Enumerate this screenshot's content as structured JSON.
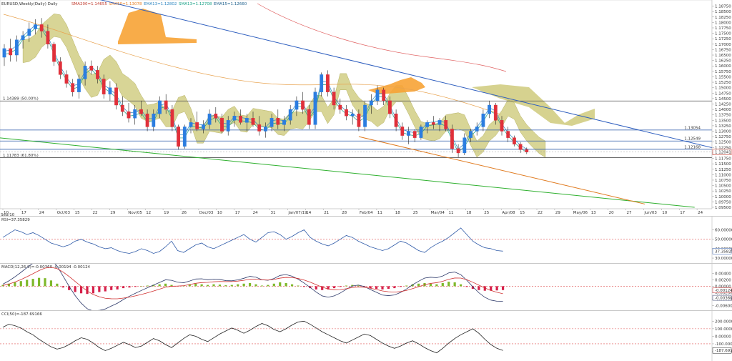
{
  "header": {
    "symbol": "EURUSD,Weekly(Daily) Daily",
    "indicators": [
      {
        "text": "SMA200=1.14655",
        "color": "#c0392b"
      },
      {
        "text": "SMA50=1.13078",
        "color": "#e67e22"
      },
      {
        "text": "EMA13=1.12802",
        "color": "#2e86c1"
      },
      {
        "text": "SMA13=1.12708",
        "color": "#16a085"
      },
      {
        "text": "EMA15=1.12660",
        "color": "#1f618d"
      }
    ]
  },
  "chart_data": [
    {
      "type": "candlestick",
      "title": "",
      "y_axis_ticks": [
        "1.18750",
        "1.18500",
        "1.18250",
        "1.18000",
        "1.17750",
        "1.17500",
        "1.17250",
        "1.17000",
        "1.16750",
        "1.16500",
        "1.16250",
        "1.16000",
        "1.15750",
        "1.15500",
        "1.15250",
        "1.15000",
        "1.14750",
        "1.14500",
        "1.14250",
        "1.14000",
        "1.13750",
        "1.13500",
        "1.13250",
        "1.13000",
        "1.12750",
        "1.12500",
        "1.12250",
        "1.12000",
        "1.11750",
        "1.11500",
        "1.11250",
        "1.11000",
        "1.10750",
        "1.10500",
        "1.10250",
        "1.10000",
        "1.09750",
        "1.09500"
      ],
      "ylim": [
        1.095,
        1.189
      ],
      "x_tick_labels": [
        "10",
        "17",
        "24",
        "Oct/03",
        "15",
        "22",
        "29",
        "Nov/05",
        "12",
        "19",
        "26",
        "Dec/03",
        "10",
        "17",
        "24",
        "31",
        "Jan/07/19",
        "14",
        "21",
        "28",
        "Feb/04",
        "11",
        "18",
        "25",
        "Mar/04",
        "11",
        "18",
        "25",
        "Apr/08",
        "15",
        "22",
        "29",
        "May/06",
        "13",
        "20",
        "27",
        "Jun/03",
        "10",
        "17",
        "24"
      ],
      "x_label_prefix": "Sep/10",
      "horizontal_levels": [
        {
          "value": 1.14389,
          "label": "1.14389 (50.00%)",
          "color": "#555555"
        },
        {
          "value": 1.13054,
          "label": "1.13054",
          "color": "#2e5aa8"
        },
        {
          "value": 1.12549,
          "label": "1.12549",
          "color": "#2e5aa8"
        },
        {
          "value": 1.12168,
          "label": "1.12168",
          "color": "#2e5aa8"
        },
        {
          "value": 1.11783,
          "label": "1.11783 (61.80%)",
          "color": "#555555"
        }
      ],
      "current_price": "1.12041",
      "trendlines": [
        {
          "name": "",
          "color": "#2f5fbf",
          "from": {
            "x": 12,
            "y": 1.1935
          },
          "to": {
            "x": 118,
            "y": 1.1202
          }
        },
        {
          "name": "",
          "color": "#2fb02f",
          "from": {
            "x": 0,
            "y": 1.127
          },
          "to": {
            "x": 112,
            "y": 1.095
          }
        },
        {
          "name": "",
          "color": "#e07b20",
          "from": {
            "x": 58,
            "y": 1.1275
          },
          "to": {
            "x": 104,
            "y": 1.0965
          }
        }
      ],
      "candles": [
        {
          "t": 1,
          "o": 1.164,
          "h": 1.17,
          "l": 1.16,
          "c": 1.168
        },
        {
          "t": 2,
          "o": 1.168,
          "h": 1.1725,
          "l": 1.162,
          "c": 1.165
        },
        {
          "t": 3,
          "o": 1.165,
          "h": 1.174,
          "l": 1.162,
          "c": 1.172
        },
        {
          "t": 4,
          "o": 1.172,
          "h": 1.176,
          "l": 1.168,
          "c": 1.174
        },
        {
          "t": 5,
          "o": 1.174,
          "h": 1.18,
          "l": 1.171,
          "c": 1.177
        },
        {
          "t": 6,
          "o": 1.177,
          "h": 1.1815,
          "l": 1.1745,
          "c": 1.179
        },
        {
          "t": 7,
          "o": 1.179,
          "h": 1.182,
          "l": 1.173,
          "c": 1.176
        },
        {
          "t": 8,
          "o": 1.176,
          "h": 1.179,
          "l": 1.168,
          "c": 1.17
        },
        {
          "t": 9,
          "o": 1.17,
          "h": 1.171,
          "l": 1.16,
          "c": 1.162
        },
        {
          "t": 10,
          "o": 1.162,
          "h": 1.164,
          "l": 1.154,
          "c": 1.156
        },
        {
          "t": 11,
          "o": 1.156,
          "h": 1.158,
          "l": 1.15,
          "c": 1.152
        },
        {
          "t": 12,
          "o": 1.152,
          "h": 1.154,
          "l": 1.146,
          "c": 1.148
        },
        {
          "t": 13,
          "o": 1.148,
          "h": 1.156,
          "l": 1.145,
          "c": 1.154
        },
        {
          "t": 14,
          "o": 1.154,
          "h": 1.162,
          "l": 1.151,
          "c": 1.16
        },
        {
          "t": 15,
          "o": 1.16,
          "h": 1.1625,
          "l": 1.156,
          "c": 1.158
        },
        {
          "t": 16,
          "o": 1.158,
          "h": 1.16,
          "l": 1.152,
          "c": 1.154
        },
        {
          "t": 17,
          "o": 1.154,
          "h": 1.156,
          "l": 1.145,
          "c": 1.147
        },
        {
          "t": 18,
          "o": 1.147,
          "h": 1.153,
          "l": 1.144,
          "c": 1.15
        },
        {
          "t": 19,
          "o": 1.15,
          "h": 1.152,
          "l": 1.14,
          "c": 1.142
        },
        {
          "t": 20,
          "o": 1.142,
          "h": 1.146,
          "l": 1.137,
          "c": 1.139
        },
        {
          "t": 21,
          "o": 1.139,
          "h": 1.143,
          "l": 1.134,
          "c": 1.136
        },
        {
          "t": 22,
          "o": 1.136,
          "h": 1.142,
          "l": 1.133,
          "c": 1.14
        },
        {
          "t": 23,
          "o": 1.14,
          "h": 1.144,
          "l": 1.137,
          "c": 1.138
        },
        {
          "t": 24,
          "o": 1.138,
          "h": 1.14,
          "l": 1.13,
          "c": 1.132
        },
        {
          "t": 25,
          "o": 1.132,
          "h": 1.14,
          "l": 1.13,
          "c": 1.138
        },
        {
          "t": 26,
          "o": 1.138,
          "h": 1.146,
          "l": 1.136,
          "c": 1.144
        },
        {
          "t": 27,
          "o": 1.144,
          "h": 1.147,
          "l": 1.138,
          "c": 1.14
        },
        {
          "t": 28,
          "o": 1.14,
          "h": 1.142,
          "l": 1.13,
          "c": 1.132
        },
        {
          "t": 29,
          "o": 1.132,
          "h": 1.133,
          "l": 1.1215,
          "c": 1.123
        },
        {
          "t": 30,
          "o": 1.123,
          "h": 1.133,
          "l": 1.122,
          "c": 1.132
        },
        {
          "t": 31,
          "o": 1.132,
          "h": 1.136,
          "l": 1.129,
          "c": 1.134
        },
        {
          "t": 32,
          "o": 1.134,
          "h": 1.139,
          "l": 1.13,
          "c": 1.131
        },
        {
          "t": 33,
          "o": 1.131,
          "h": 1.135,
          "l": 1.129,
          "c": 1.133
        },
        {
          "t": 34,
          "o": 1.133,
          "h": 1.14,
          "l": 1.131,
          "c": 1.138
        },
        {
          "t": 35,
          "o": 1.138,
          "h": 1.141,
          "l": 1.134,
          "c": 1.136
        },
        {
          "t": 36,
          "o": 1.136,
          "h": 1.138,
          "l": 1.129,
          "c": 1.13
        },
        {
          "t": 37,
          "o": 1.13,
          "h": 1.137,
          "l": 1.128,
          "c": 1.135
        },
        {
          "t": 38,
          "o": 1.135,
          "h": 1.139,
          "l": 1.132,
          "c": 1.137
        },
        {
          "t": 39,
          "o": 1.137,
          "h": 1.14,
          "l": 1.133,
          "c": 1.134
        },
        {
          "t": 40,
          "o": 1.134,
          "h": 1.138,
          "l": 1.13,
          "c": 1.136
        },
        {
          "t": 41,
          "o": 1.136,
          "h": 1.139,
          "l": 1.132,
          "c": 1.133
        },
        {
          "t": 42,
          "o": 1.133,
          "h": 1.137,
          "l": 1.128,
          "c": 1.13
        },
        {
          "t": 43,
          "o": 1.13,
          "h": 1.134,
          "l": 1.127,
          "c": 1.132
        },
        {
          "t": 44,
          "o": 1.132,
          "h": 1.138,
          "l": 1.13,
          "c": 1.136
        },
        {
          "t": 45,
          "o": 1.136,
          "h": 1.14,
          "l": 1.131,
          "c": 1.133
        },
        {
          "t": 46,
          "o": 1.133,
          "h": 1.137,
          "l": 1.13,
          "c": 1.135
        },
        {
          "t": 47,
          "o": 1.135,
          "h": 1.142,
          "l": 1.133,
          "c": 1.14
        },
        {
          "t": 48,
          "o": 1.14,
          "h": 1.146,
          "l": 1.137,
          "c": 1.144
        },
        {
          "t": 49,
          "o": 1.144,
          "h": 1.148,
          "l": 1.138,
          "c": 1.14
        },
        {
          "t": 50,
          "o": 1.14,
          "h": 1.142,
          "l": 1.131,
          "c": 1.133
        },
        {
          "t": 51,
          "o": 1.133,
          "h": 1.15,
          "l": 1.131,
          "c": 1.148
        },
        {
          "t": 52,
          "o": 1.148,
          "h": 1.157,
          "l": 1.146,
          "c": 1.156
        },
        {
          "t": 53,
          "o": 1.156,
          "h": 1.158,
          "l": 1.146,
          "c": 1.148
        },
        {
          "t": 54,
          "o": 1.148,
          "h": 1.15,
          "l": 1.14,
          "c": 1.142
        },
        {
          "t": 55,
          "o": 1.142,
          "h": 1.145,
          "l": 1.138,
          "c": 1.14
        },
        {
          "t": 56,
          "o": 1.14,
          "h": 1.142,
          "l": 1.135,
          "c": 1.137
        },
        {
          "t": 57,
          "o": 1.137,
          "h": 1.14,
          "l": 1.133,
          "c": 1.138
        },
        {
          "t": 58,
          "o": 1.138,
          "h": 1.14,
          "l": 1.13,
          "c": 1.132
        },
        {
          "t": 59,
          "o": 1.132,
          "h": 1.144,
          "l": 1.13,
          "c": 1.142
        },
        {
          "t": 60,
          "o": 1.142,
          "h": 1.147,
          "l": 1.138,
          "c": 1.144
        },
        {
          "t": 61,
          "o": 1.144,
          "h": 1.151,
          "l": 1.142,
          "c": 1.149
        },
        {
          "t": 62,
          "o": 1.149,
          "h": 1.15,
          "l": 1.142,
          "c": 1.144
        },
        {
          "t": 63,
          "o": 1.144,
          "h": 1.146,
          "l": 1.136,
          "c": 1.138
        },
        {
          "t": 64,
          "o": 1.138,
          "h": 1.14,
          "l": 1.13,
          "c": 1.132
        },
        {
          "t": 65,
          "o": 1.132,
          "h": 1.134,
          "l": 1.126,
          "c": 1.128
        },
        {
          "t": 66,
          "o": 1.128,
          "h": 1.132,
          "l": 1.124,
          "c": 1.13
        },
        {
          "t": 67,
          "o": 1.13,
          "h": 1.131,
          "l": 1.125,
          "c": 1.127
        },
        {
          "t": 68,
          "o": 1.127,
          "h": 1.133,
          "l": 1.126,
          "c": 1.132
        },
        {
          "t": 69,
          "o": 1.132,
          "h": 1.135,
          "l": 1.129,
          "c": 1.134
        },
        {
          "t": 70,
          "o": 1.134,
          "h": 1.137,
          "l": 1.131,
          "c": 1.133
        },
        {
          "t": 71,
          "o": 1.133,
          "h": 1.136,
          "l": 1.13,
          "c": 1.135
        },
        {
          "t": 72,
          "o": 1.135,
          "h": 1.137,
          "l": 1.13,
          "c": 1.131
        },
        {
          "t": 73,
          "o": 1.131,
          "h": 1.133,
          "l": 1.12,
          "c": 1.122
        },
        {
          "t": 74,
          "o": 1.122,
          "h": 1.124,
          "l": 1.118,
          "c": 1.12
        },
        {
          "t": 75,
          "o": 1.12,
          "h": 1.129,
          "l": 1.119,
          "c": 1.127
        },
        {
          "t": 76,
          "o": 1.127,
          "h": 1.131,
          "l": 1.125,
          "c": 1.13
        },
        {
          "t": 77,
          "o": 1.13,
          "h": 1.134,
          "l": 1.128,
          "c": 1.132
        },
        {
          "t": 78,
          "o": 1.132,
          "h": 1.14,
          "l": 1.13,
          "c": 1.138
        },
        {
          "t": 79,
          "o": 1.138,
          "h": 1.144,
          "l": 1.136,
          "c": 1.142
        },
        {
          "t": 80,
          "o": 1.142,
          "h": 1.143,
          "l": 1.133,
          "c": 1.135
        },
        {
          "t": 81,
          "o": 1.135,
          "h": 1.137,
          "l": 1.128,
          "c": 1.13
        },
        {
          "t": 82,
          "o": 1.13,
          "h": 1.132,
          "l": 1.125,
          "c": 1.127
        },
        {
          "t": 83,
          "o": 1.127,
          "h": 1.128,
          "l": 1.123,
          "c": 1.124
        },
        {
          "t": 84,
          "o": 1.124,
          "h": 1.125,
          "l": 1.12,
          "c": 1.1215
        },
        {
          "t": 85,
          "o": 1.1215,
          "h": 1.1225,
          "l": 1.1195,
          "c": 1.1204
        }
      ]
    },
    {
      "type": "line",
      "title": "RSI=37.35829",
      "y_axis_ticks": [
        "60.00000",
        "50.00000",
        "40.00000",
        "30.00000"
      ],
      "ylim": [
        27,
        68
      ],
      "reference_line": 50,
      "current_value": "37.35829",
      "values": [
        52,
        56,
        60,
        58,
        55,
        57,
        54,
        50,
        46,
        44,
        42,
        44,
        48,
        50,
        47,
        45,
        42,
        40,
        41,
        38,
        36,
        35,
        37,
        40,
        38,
        35,
        37,
        42,
        48,
        38,
        36,
        40,
        44,
        46,
        42,
        40,
        43,
        46,
        49,
        52,
        55,
        50,
        47,
        52,
        57,
        58,
        55,
        50,
        53,
        57,
        60,
        52,
        48,
        45,
        43,
        46,
        50,
        54,
        52,
        48,
        45,
        42,
        40,
        38,
        40,
        44,
        48,
        46,
        42,
        38,
        36,
        41,
        45,
        48,
        52,
        57,
        62,
        55,
        48,
        44,
        41,
        40,
        38,
        37.4
      ]
    },
    {
      "type": "bar",
      "title": "MACD(12,26,9)=-0.00360 -0.00194 -0.00124",
      "y_axis_ticks": [
        "0.00400",
        "0.00200",
        "0.00000",
        "-0.00200",
        "-0.00400",
        "-0.00600"
      ],
      "ylim": [
        -0.0068,
        0.0052
      ],
      "current_values": [
        "-0.00124",
        "-0.00360"
      ],
      "histogram": [
        0.0004,
        0.0008,
        0.0012,
        0.0016,
        0.002,
        0.0023,
        0.0026,
        0.0025,
        0.0018,
        0.0008,
        -0.0004,
        -0.0012,
        -0.0018,
        -0.0022,
        -0.0024,
        -0.0022,
        -0.0018,
        -0.0016,
        -0.0012,
        -0.001,
        -0.0006,
        -0.0004,
        -0.0002,
        0,
        0.0002,
        0.0004,
        0.0006,
        0.0008,
        0.0004,
        0.0001,
        0.0002,
        0.0006,
        0.0008,
        0.0006,
        0.0004,
        0.0006,
        0.0005,
        0.0003,
        0.0004,
        0.0006,
        0.0008,
        0.001,
        0.0006,
        0.0002,
        0.0004,
        0.0008,
        0.0012,
        0.001,
        0.0006,
        0.0002,
        -0.0002,
        -0.0006,
        -0.001,
        -0.0012,
        -0.001,
        -0.0006,
        -0.0002,
        0.0002,
        0.0004,
        0.0002,
        -0.0002,
        -0.0006,
        -0.0008,
        -0.001,
        -0.0008,
        -0.0006,
        -0.0002,
        0.0002,
        0.0006,
        0.0008,
        0.001,
        0.0008,
        0.0006,
        0.001,
        0.0014,
        0.0012,
        0.0006,
        -0.0002,
        -0.0008,
        -0.0012,
        -0.0014,
        -0.0014,
        -0.0013,
        -0.0012
      ]
    },
    {
      "type": "line",
      "title": "CCI(50)=-187.69166",
      "y_axis_ticks": [
        "200.00000",
        "100.00000",
        "0.00000",
        "-100.00000",
        "-200.00000"
      ],
      "ylim": [
        -290,
        260
      ],
      "current_value": "-187.69166",
      "values": [
        120,
        160,
        140,
        110,
        60,
        20,
        -40,
        -90,
        -140,
        -170,
        -150,
        -110,
        -60,
        -20,
        -40,
        -90,
        -150,
        -190,
        -160,
        -120,
        -80,
        -110,
        -150,
        -130,
        -80,
        -30,
        -60,
        -110,
        -150,
        -90,
        -30,
        20,
        0,
        -40,
        -70,
        -20,
        30,
        70,
        110,
        80,
        40,
        80,
        130,
        170,
        140,
        90,
        60,
        100,
        150,
        190,
        200,
        160,
        110,
        60,
        20,
        -20,
        -60,
        -90,
        -50,
        -10,
        30,
        10,
        -40,
        -90,
        -130,
        -160,
        -130,
        -90,
        -60,
        -100,
        -150,
        -190,
        -220,
        -160,
        -90,
        -30,
        20,
        60,
        100,
        40,
        -40,
        -110,
        -160,
        -188
      ]
    }
  ]
}
